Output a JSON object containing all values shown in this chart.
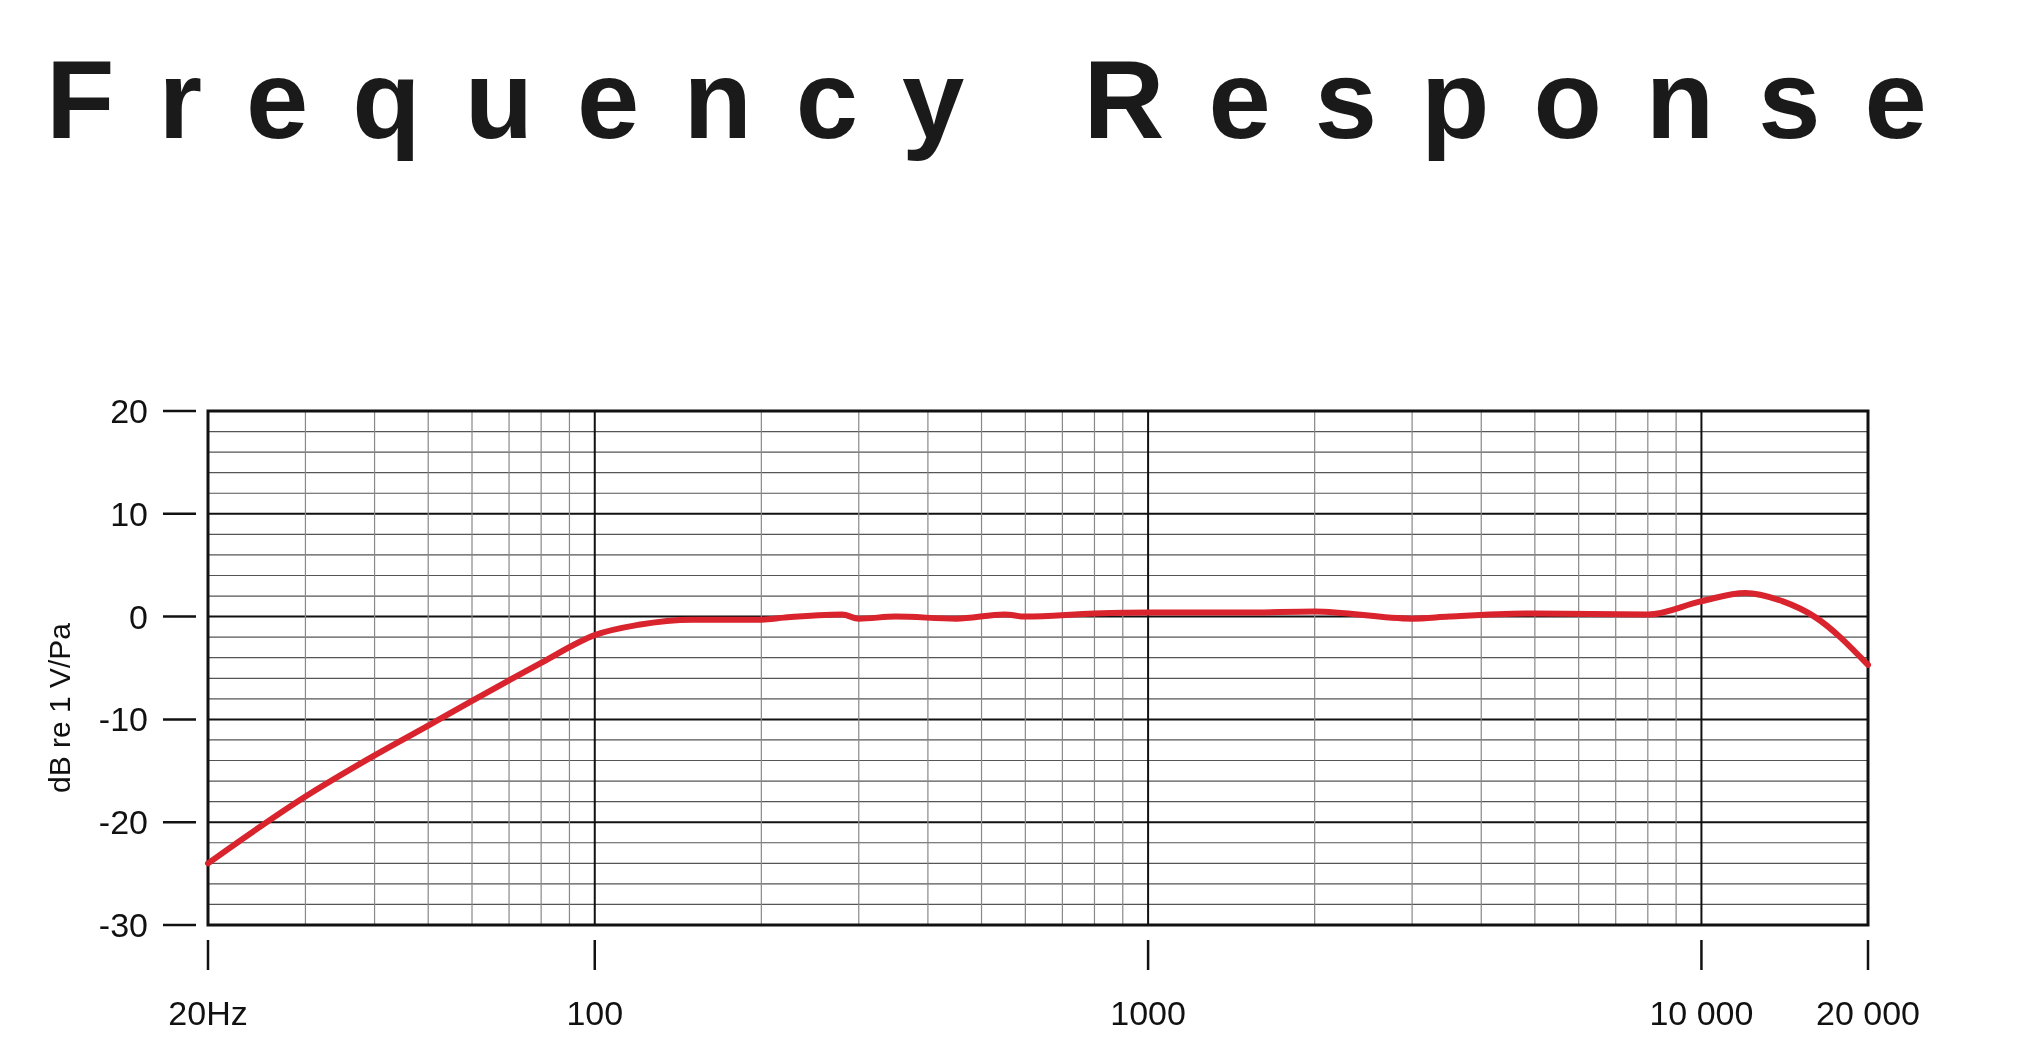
{
  "chart_data": {
    "type": "line",
    "title": "Frequency Response",
    "ylabel": "dB re 1 V/Pa",
    "log": "x",
    "grid": true,
    "xlim": [
      20,
      20000
    ],
    "ylim": [
      -30,
      20
    ],
    "xticks": [
      {
        "value": 20,
        "label": "20Hz"
      },
      {
        "value": 30,
        "label": null
      },
      {
        "value": 40,
        "label": null
      },
      {
        "value": 50,
        "label": null
      },
      {
        "value": 60,
        "label": null
      },
      {
        "value": 70,
        "label": null
      },
      {
        "value": 80,
        "label": null
      },
      {
        "value": 90,
        "label": null
      },
      100,
      {
        "value": 200,
        "label": null
      },
      {
        "value": 300,
        "label": null
      },
      {
        "value": 400,
        "label": null
      },
      {
        "value": 500,
        "label": null
      },
      {
        "value": 600,
        "label": null
      },
      {
        "value": 700,
        "label": null
      },
      {
        "value": 800,
        "label": null
      },
      {
        "value": 900,
        "label": null
      },
      1000,
      {
        "value": 2000,
        "label": null
      },
      {
        "value": 3000,
        "label": null
      },
      {
        "value": 4000,
        "label": null
      },
      {
        "value": 5000,
        "label": null
      },
      {
        "value": 6000,
        "label": null
      },
      {
        "value": 7000,
        "label": null
      },
      {
        "value": 8000,
        "label": null
      },
      {
        "value": 9000,
        "label": null
      },
      {
        "value": 10000,
        "label": "10 000"
      },
      {
        "value": 20000,
        "label": "20 000"
      }
    ],
    "yticks": [
      -30,
      {
        "value": -28,
        "label": null
      },
      {
        "value": -26,
        "label": null
      },
      {
        "value": -24,
        "label": null
      },
      {
        "value": -22,
        "label": null
      },
      -20,
      {
        "value": -18,
        "label": null
      },
      {
        "value": -16,
        "label": null
      },
      {
        "value": -14,
        "label": null
      },
      {
        "value": -12,
        "label": null
      },
      -10,
      {
        "value": -8,
        "label": null
      },
      {
        "value": -6,
        "label": null
      },
      {
        "value": -4,
        "label": null
      },
      {
        "value": -2,
        "label": null
      },
      0,
      {
        "value": 2,
        "label": null
      },
      {
        "value": 4,
        "label": null
      },
      {
        "value": 6,
        "label": null
      },
      {
        "value": 8,
        "label": null
      },
      10,
      {
        "value": 12,
        "label": null
      },
      {
        "value": 14,
        "label": null
      },
      {
        "value": 16,
        "label": null
      },
      {
        "value": 18,
        "label": null
      },
      20
    ],
    "marker": "none",
    "line_style": "solid",
    "series": [
      {
        "color": "#d9232d",
        "x": [
          20,
          30,
          40,
          50,
          60,
          70,
          80,
          100,
          120,
          150,
          200,
          220,
          280,
          300,
          350,
          450,
          550,
          600,
          800,
          1000,
          1500,
          2000,
          3000,
          3500,
          5000,
          8000,
          10000,
          12000,
          14000,
          16000,
          20000
        ],
        "values": [
          -24,
          -17.5,
          -13.5,
          -10.6,
          -8.2,
          -6.2,
          -4.5,
          -1.8,
          -0.8,
          -0.3,
          -0.3,
          -0.1,
          0.2,
          -0.2,
          0,
          -0.2,
          0.2,
          0,
          0.3,
          0.4,
          0.4,
          0.5,
          -0.2,
          0,
          0.3,
          0.2,
          1.5,
          2.3,
          1.5,
          0,
          -4.7
        ]
      }
    ]
  }
}
